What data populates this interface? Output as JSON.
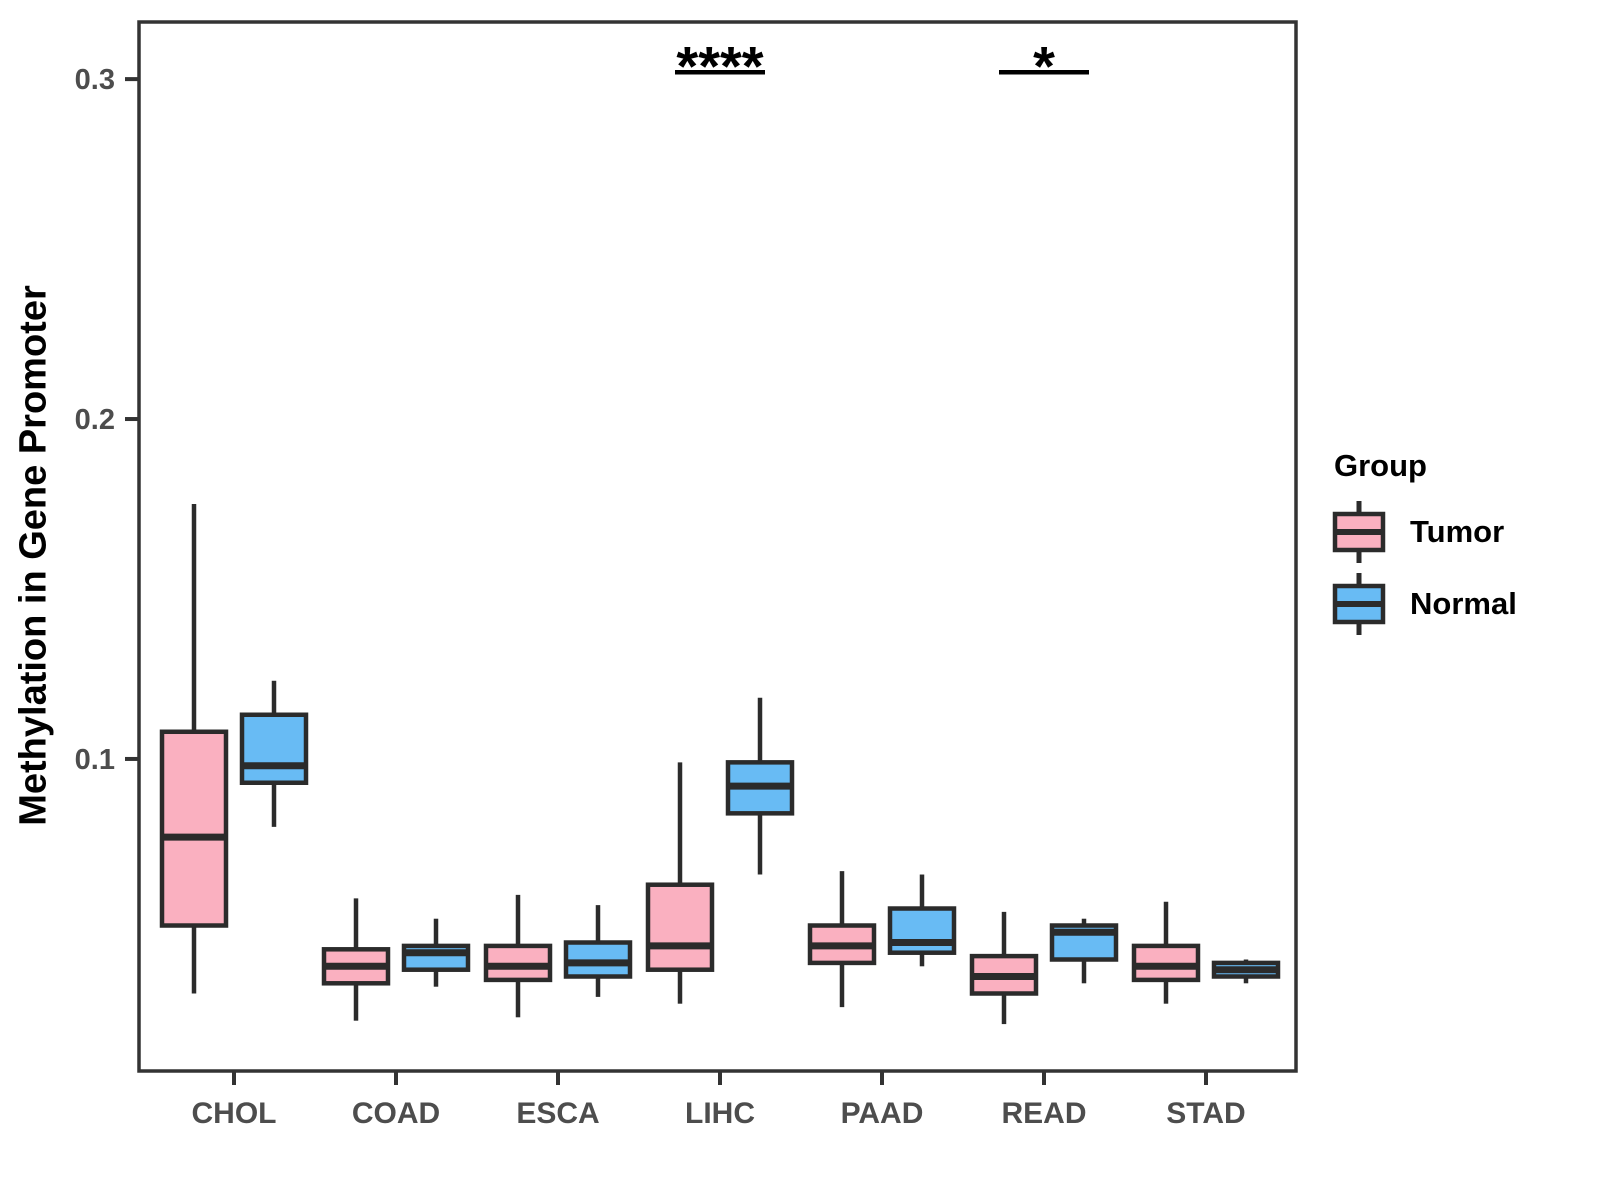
{
  "y_axis": {
    "title": "Methylation in Gene Promoter",
    "tick_labels": [
      "0.1",
      "0.2",
      "0.3"
    ]
  },
  "legend": {
    "title": "Group",
    "items": [
      {
        "label": "Tumor",
        "color": "#FAB0C0"
      },
      {
        "label": "Normal",
        "color": "#68BBF4"
      }
    ]
  },
  "colors": {
    "tumor_fill": "#FAB0C0",
    "normal_fill": "#68BBF4",
    "box_stroke": "#2B2B2B",
    "axis_line": "#333333",
    "tick_text": "#4D4D4D",
    "annotation": "#000000"
  },
  "chart_data": {
    "type": "boxplot",
    "title": "",
    "xlabel": "",
    "ylabel": "Methylation in Gene Promoter",
    "categories": [
      "CHOL",
      "COAD",
      "ESCA",
      "LIHC",
      "PAAD",
      "READ",
      "STAD"
    ],
    "ylim": [
      0.0082,
      0.3168
    ],
    "yticks": [
      0.1,
      0.2,
      0.3
    ],
    "grid": false,
    "legend_position": "right",
    "series": [
      {
        "name": "Tumor",
        "color": "#FAB0C0",
        "boxes": [
          {
            "low": 0.031,
            "q1": 0.051,
            "median": 0.077,
            "q3": 0.108,
            "high": 0.175
          },
          {
            "low": 0.023,
            "q1": 0.034,
            "median": 0.039,
            "q3": 0.044,
            "high": 0.059
          },
          {
            "low": 0.024,
            "q1": 0.035,
            "median": 0.039,
            "q3": 0.045,
            "high": 0.06
          },
          {
            "low": 0.028,
            "q1": 0.038,
            "median": 0.045,
            "q3": 0.063,
            "high": 0.099
          },
          {
            "low": 0.027,
            "q1": 0.04,
            "median": 0.045,
            "q3": 0.051,
            "high": 0.067
          },
          {
            "low": 0.022,
            "q1": 0.031,
            "median": 0.036,
            "q3": 0.042,
            "high": 0.055
          },
          {
            "low": 0.028,
            "q1": 0.035,
            "median": 0.039,
            "q3": 0.045,
            "high": 0.058
          }
        ]
      },
      {
        "name": "Normal",
        "color": "#68BBF4",
        "boxes": [
          {
            "low": 0.08,
            "q1": 0.093,
            "median": 0.098,
            "q3": 0.113,
            "high": 0.123
          },
          {
            "low": 0.033,
            "q1": 0.038,
            "median": 0.043,
            "q3": 0.045,
            "high": 0.053
          },
          {
            "low": 0.03,
            "q1": 0.036,
            "median": 0.04,
            "q3": 0.046,
            "high": 0.057
          },
          {
            "low": 0.066,
            "q1": 0.084,
            "median": 0.092,
            "q3": 0.099,
            "high": 0.118
          },
          {
            "low": 0.039,
            "q1": 0.043,
            "median": 0.046,
            "q3": 0.056,
            "high": 0.066
          },
          {
            "low": 0.034,
            "q1": 0.041,
            "median": 0.049,
            "q3": 0.051,
            "high": 0.053
          },
          {
            "low": 0.034,
            "q1": 0.036,
            "median": 0.038,
            "q3": 0.04,
            "high": 0.041
          }
        ]
      }
    ],
    "annotations": [
      {
        "category": "LIHC",
        "label": "****",
        "y": 0.302
      },
      {
        "category": "READ",
        "label": "*",
        "y": 0.302
      }
    ]
  }
}
